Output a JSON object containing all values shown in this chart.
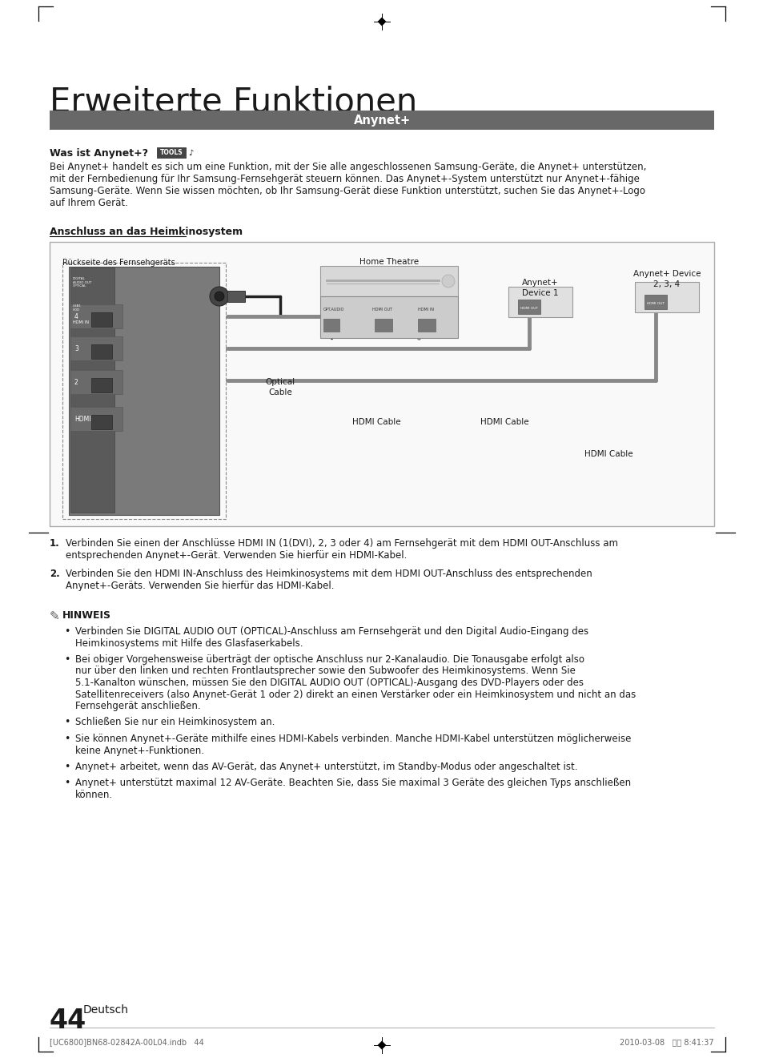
{
  "page_title": "Erweiterte Funktionen",
  "section_header": "Anynet+",
  "subsection1_title": "Was ist Anynet+?",
  "tools_label": "TOOLS",
  "paragraph1_lines": [
    "Bei Anynet+ handelt es sich um eine Funktion, mit der Sie alle angeschlossenen Samsung-Geräte, die Anynet+ unterstützen,",
    "mit der Fernbedienung für Ihr Samsung-Fernsehgerät steuern können. Das Anynet+-System unterstützt nur Anynet+-fähige",
    "Samsung-Geräte. Wenn Sie wissen möchten, ob Ihr Samsung-Gerät diese Funktion unterstützt, suchen Sie das Anynet+-Logo",
    "auf Ihrem Gerät."
  ],
  "subsection2_title": "Anschluss an das Heimkinosystem",
  "diagram_label_tv": "Rückseite des Fernsehgeräts",
  "diagram_label_ht": "Home Theatre",
  "diagram_label_dev1_l1": "Anynet+",
  "diagram_label_dev1_l2": "Device 1",
  "diagram_label_dev234_l1": "Anynet+ Device",
  "diagram_label_dev234_l2": "2, 3, 4",
  "diagram_label_optical_l1": "Optical",
  "diagram_label_optical_l2": "Cable",
  "diagram_label_hdmi1": "HDMI Cable",
  "diagram_label_hdmi2": "HDMI Cable",
  "diagram_label_hdmi3": "HDMI Cable",
  "numbered_item1_l1": "Verbinden Sie einen der Anschlüsse HDMI IN (1(DVI), 2, 3 oder 4) am Fernsehgerät mit dem HDMI OUT-Anschluss am",
  "numbered_item1_l2": "entsprechenden Anynet+-Gerät. Verwenden Sie hierfür ein HDMI-Kabel.",
  "numbered_item2_l1": "Verbinden Sie den HDMI IN-Anschluss des Heimkinosystems mit dem HDMI OUT-Anschluss des entsprechenden",
  "numbered_item2_l2": "Anynet+-Geräts. Verwenden Sie hierfür das HDMI-Kabel.",
  "hinweis_title": "HINWEIS",
  "bullet1_l1": "Verbinden Sie DIGITAL AUDIO OUT (OPTICAL)-Anschluss am Fernsehgerät und den Digital Audio-Eingang des",
  "bullet1_l2": "Heimkinosystems mit Hilfe des Glasfaserkabels.",
  "bullet2_l1": "Bei obiger Vorgehensweise überträgt der optische Anschluss nur 2-Kanalaudio. Die Tonausgabe erfolgt also",
  "bullet2_l2": "nur über den linken und rechten Frontlautsprecher sowie den Subwoofer des Heimkinosystems. Wenn Sie",
  "bullet2_l3": "5.1-Kanalton wünschen, müssen Sie den DIGITAL AUDIO OUT (OPTICAL)-Ausgang des DVD-Players oder des",
  "bullet2_l4": "Satellitenreceivers (also Anynet-Gerät 1 oder 2) direkt an einen Verstärker oder ein Heimkinosystem und nicht an das",
  "bullet2_l5": "Fernsehgerät anschließen.",
  "bullet3_l1": "Schließen Sie nur ein Heimkinosystem an.",
  "bullet4_l1": "Sie können Anynet+-Geräte mithilfe eines HDMI-Kabels verbinden. Manche HDMI-Kabel unterstützen möglicherweise",
  "bullet4_l2": "keine Anynet+-Funktionen.",
  "bullet5_l1": "Anynet+ arbeitet, wenn das AV-Gerät, das Anynet+ unterstützt, im Standby-Modus oder angeschaltet ist.",
  "bullet6_l1": "Anynet+ unterstützt maximal 12 AV-Geräte. Beachten Sie, dass Sie maximal 3 Geräte des gleichen Typs anschließen",
  "bullet6_l2": "können.",
  "page_number": "44",
  "page_lang": "Deutsch",
  "footer_left": "[UC6800]BN68-02842A-00L04.indb   44",
  "footer_right": "2010-03-08   오후 8:41:37",
  "header_color": "#686868",
  "background_color": "#ffffff",
  "text_color": "#1a1a1a",
  "diagram_border": "#aaaaaa",
  "diagram_bg": "#f9f9f9",
  "cable_color_optical": "#222222",
  "cable_color_hdmi": "#888888"
}
